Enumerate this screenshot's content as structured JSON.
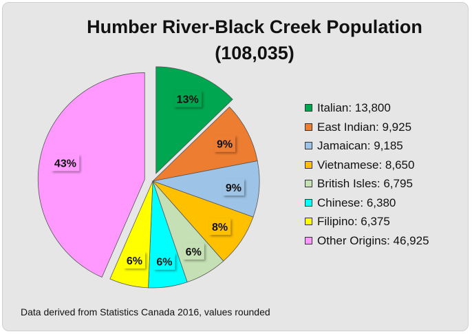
{
  "chart_data": {
    "type": "pie",
    "title": "Humber River-Black Creek Population",
    "subtitle": "(108,035)",
    "slices": [
      {
        "label": "Italian",
        "value": 13800,
        "value_label": "13,800",
        "pct": "13%",
        "color": "#00a650",
        "exploded": true
      },
      {
        "label": "East Indian",
        "value": 9925,
        "value_label": "9,925",
        "pct": "9%",
        "color": "#ed7d31",
        "exploded": false
      },
      {
        "label": "Jamaican",
        "value": 9185,
        "value_label": "9,185",
        "pct": "9%",
        "color": "#9dc3e6",
        "exploded": false
      },
      {
        "label": "Vietnamese",
        "value": 8650,
        "value_label": "8,650",
        "pct": "8%",
        "color": "#ffc000",
        "exploded": false
      },
      {
        "label": "British Isles",
        "value": 6795,
        "value_label": "6,795",
        "pct": "6%",
        "color": "#c5e0b4",
        "exploded": false
      },
      {
        "label": "Chinese",
        "value": 6380,
        "value_label": "6,380",
        "pct": "6%",
        "color": "#00ffff",
        "exploded": false
      },
      {
        "label": "Filipino",
        "value": 6375,
        "value_label": "6,375",
        "pct": "6%",
        "color": "#ffff00",
        "exploded": false
      },
      {
        "label": "Other Origins",
        "value": 46925,
        "value_label": "46,925",
        "pct": "43%",
        "color": "#ff99ff",
        "exploded": true
      }
    ],
    "legend_position": "right"
  },
  "legend_entries": [
    "Italian: 13,800",
    "East Indian: 9,925",
    "Jamaican: 9,185",
    "Vietnamese: 8,650",
    "British Isles: 6,795",
    "Chinese: 6,380",
    "Filipino: 6,375",
    "Other Origins: 46,925"
  ],
  "footnote": "Data derived from Statistics Canada 2016, values rounded"
}
